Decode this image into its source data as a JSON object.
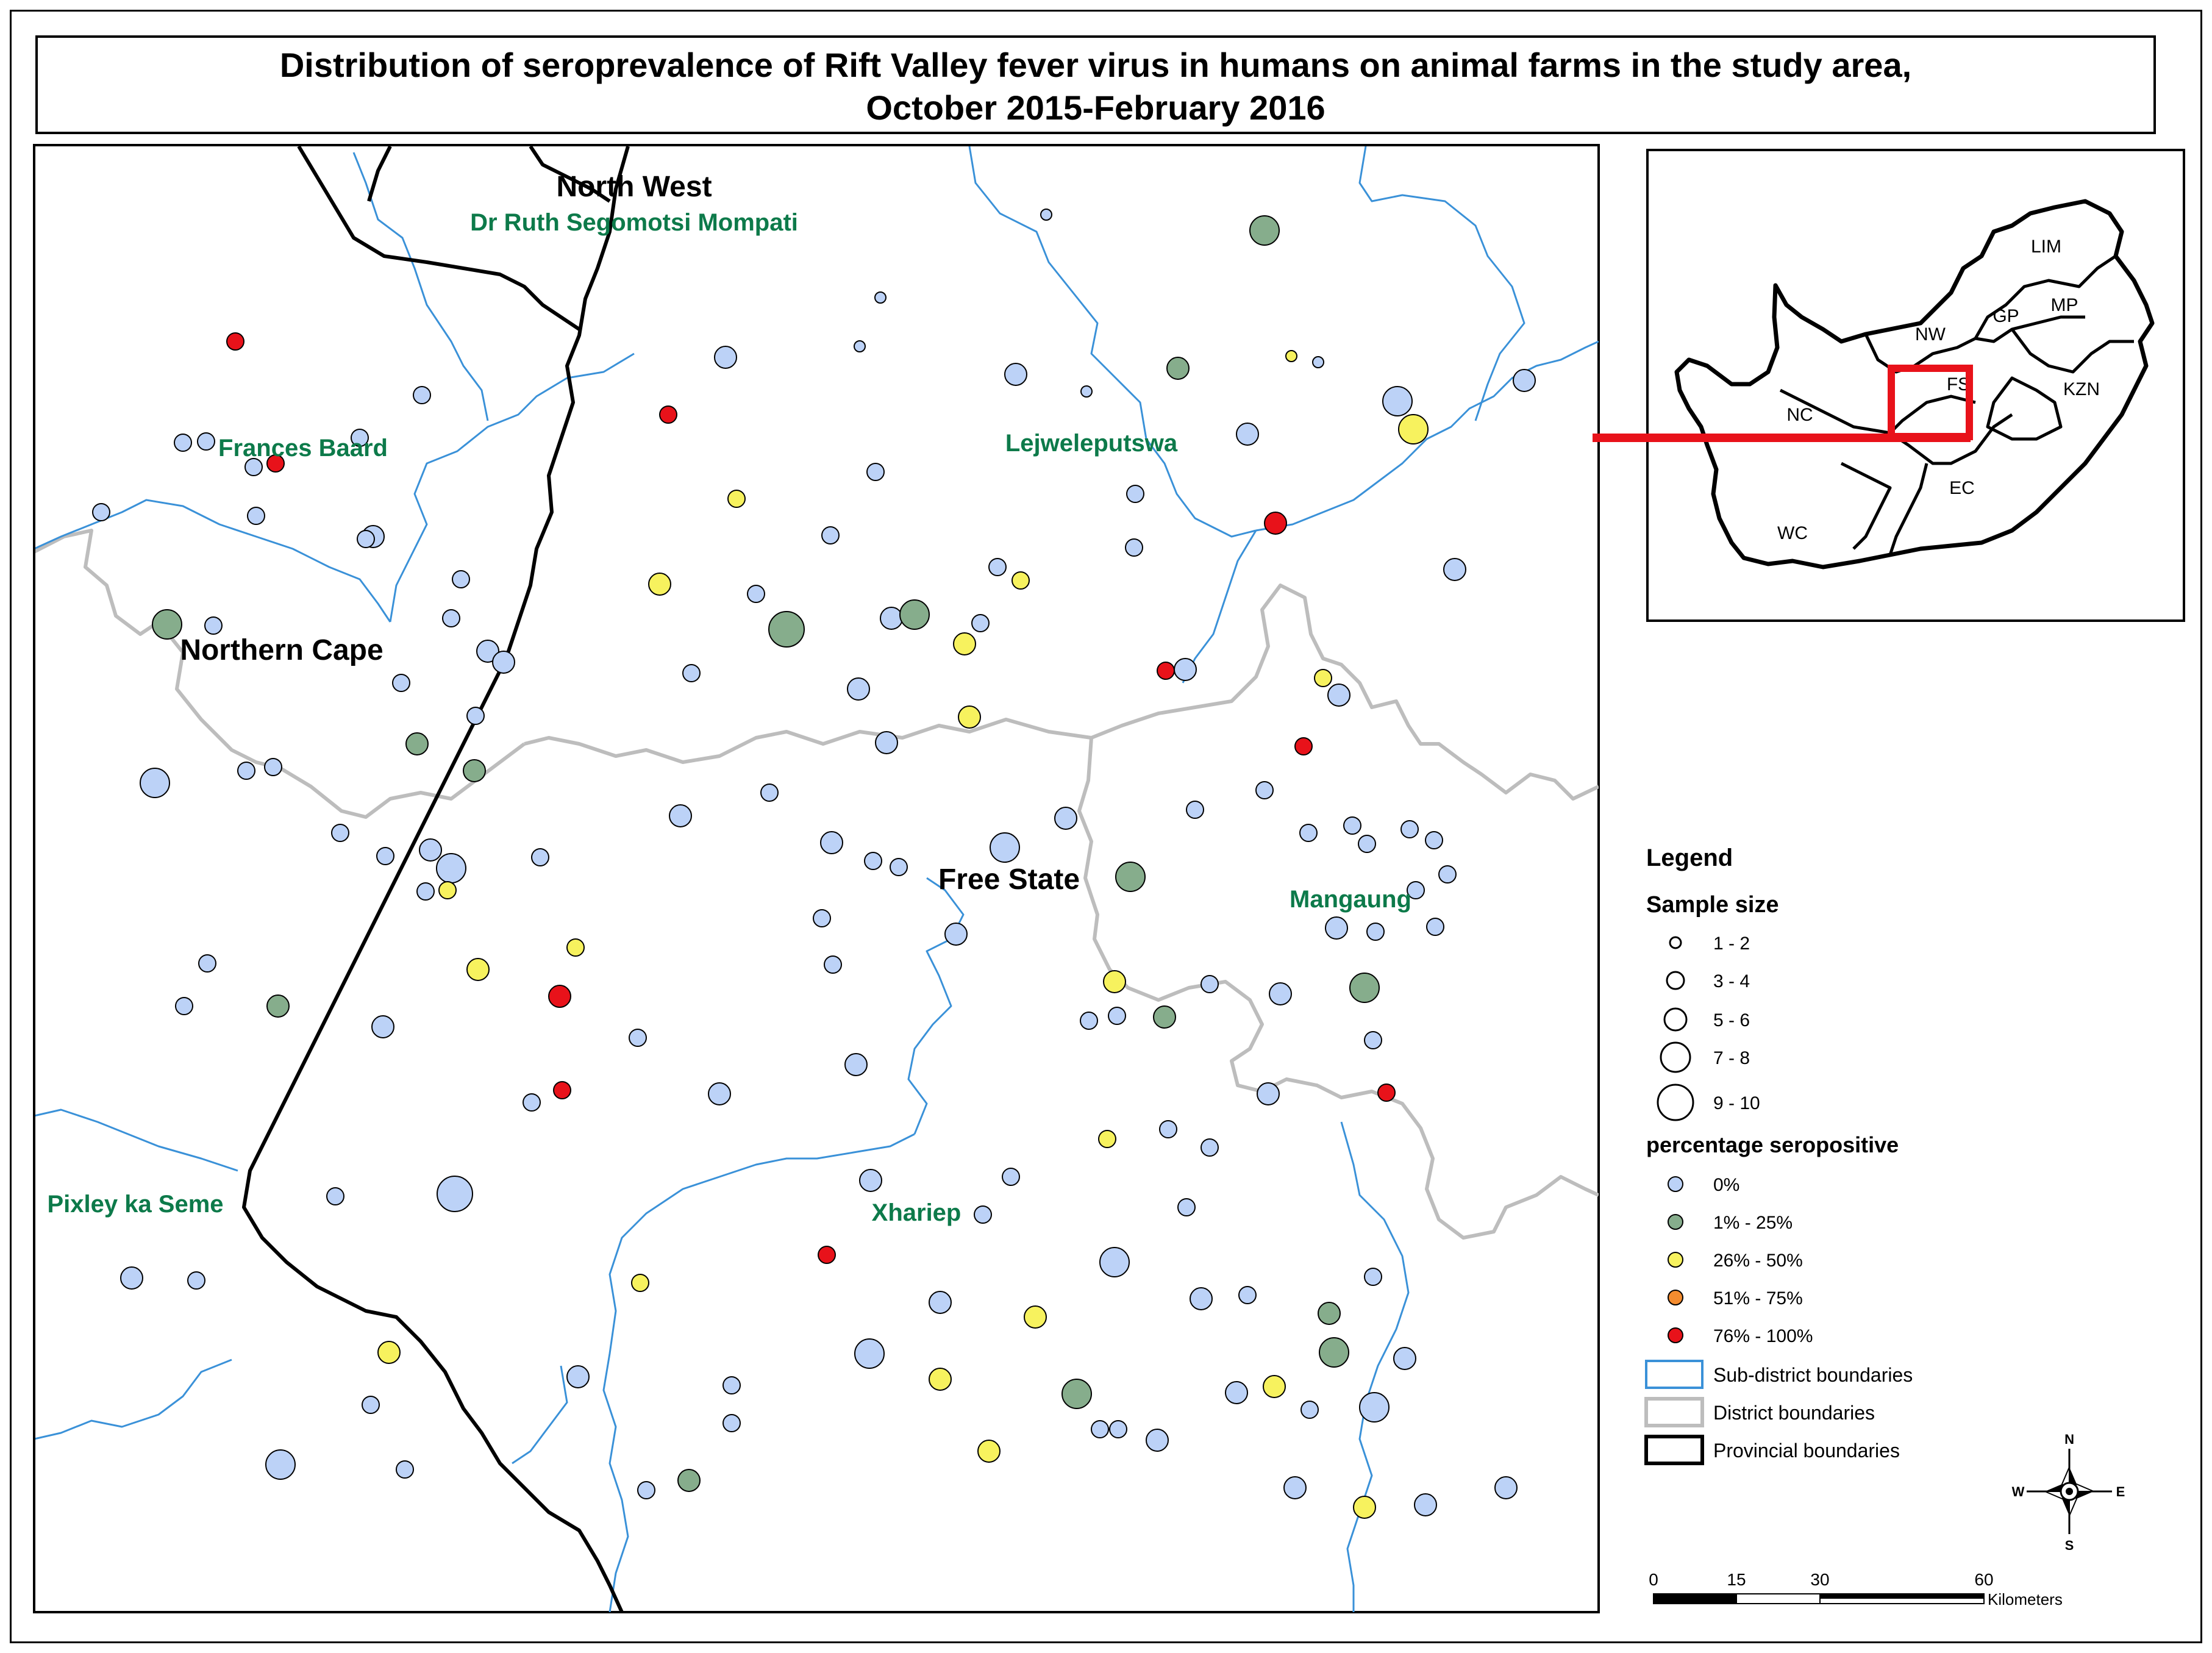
{
  "title": {
    "line1": "Distribution of seroprevalence of Rift Valley fever virus in humans on animal farms in the study area,",
    "line2": "October 2015-February 2016"
  },
  "map_labels": {
    "north_west": "North West",
    "dr_ruth": "Dr Ruth Segomotsi Mompati",
    "frances_baard": "Frances Baard",
    "lejweleputswa": "Lejweleputswa",
    "northern_cape": "Northern Cape",
    "free_state": "Free State",
    "mangaung": "Mangaung",
    "pixley": "Pixley ka Seme",
    "xhariep": "Xhariep"
  },
  "inset": {
    "provinces": [
      "LIM",
      "GP",
      "MP",
      "NW",
      "FS",
      "KZN",
      "NC",
      "EC",
      "WC"
    ]
  },
  "legend": {
    "title": "Legend",
    "sample_size_title": "Sample size",
    "sample_sizes": [
      "1 - 2",
      "3 - 4",
      "5 - 6",
      "7 - 8",
      "9 - 10"
    ],
    "percent_title": "percentage seropositive",
    "percent_classes": [
      {
        "label": "0%",
        "color": "#bcd2f7"
      },
      {
        "label": "1% - 25%",
        "color": "#86ad8c"
      },
      {
        "label": "26% - 50%",
        "color": "#f7f25e"
      },
      {
        "label": "51% - 75%",
        "color": "#f48c2f"
      },
      {
        "label": "76% - 100%",
        "color": "#e8121a"
      }
    ],
    "boundaries": [
      "Sub-district boundaries",
      "District boundaries",
      "Provincial boundaries"
    ],
    "boundary_colors": [
      "#3a91d8",
      "#bdbdbd",
      "#000000"
    ]
  },
  "north_arrow": {
    "n": "N",
    "s": "S",
    "e": "E",
    "w": "W"
  },
  "scale_bar": {
    "ticks": [
      "0",
      "15",
      "30",
      "60"
    ],
    "unit": "Kilometers"
  }
}
